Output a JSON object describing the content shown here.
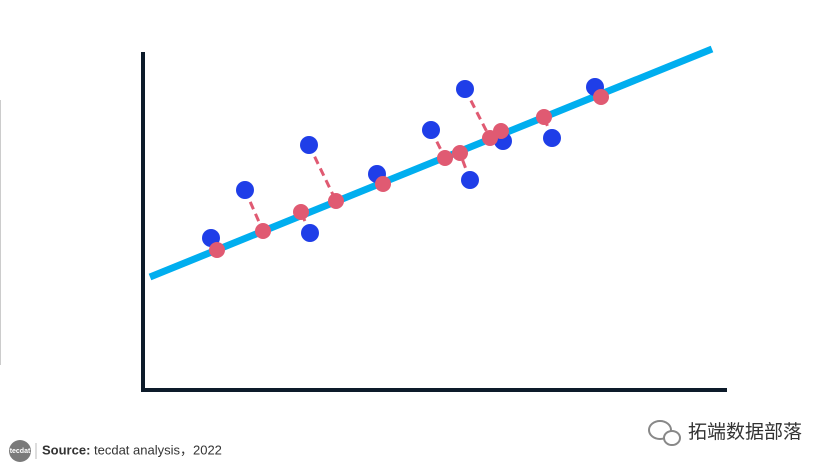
{
  "logo": "tecdat",
  "source": {
    "label": "Source:",
    "text": "tecdat analysis，2022"
  },
  "watermark": "拓端数据部落"
}
